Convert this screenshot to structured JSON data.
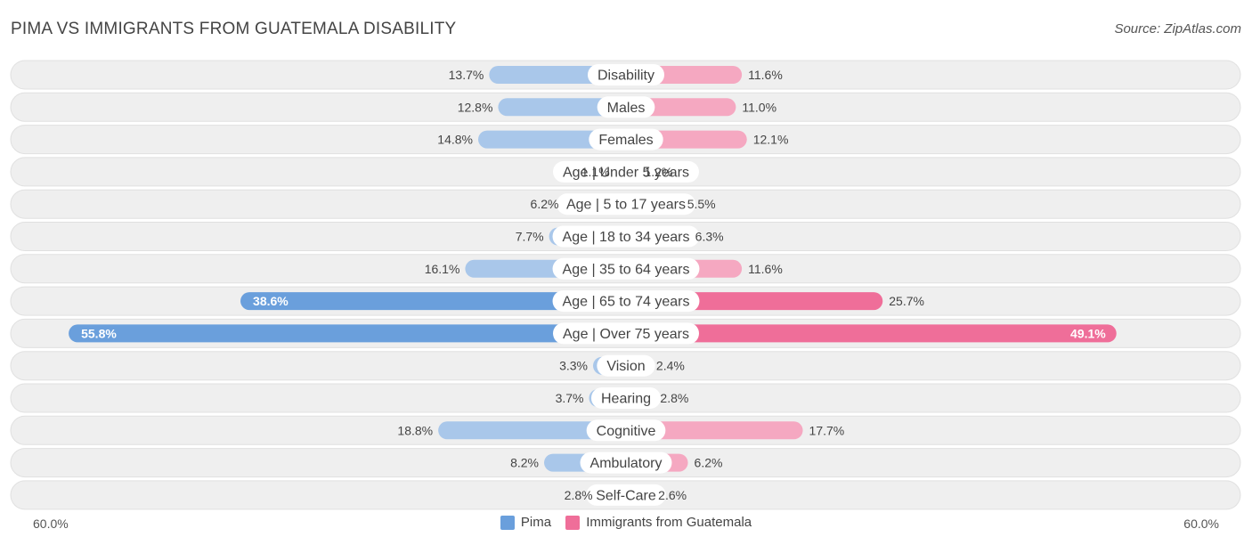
{
  "header": {
    "title": "PIMA VS IMMIGRANTS FROM GUATEMALA DISABILITY",
    "source": "Source: ZipAtlas.com"
  },
  "axis": {
    "left_label": "60.0%",
    "right_label": "60.0%"
  },
  "legend": {
    "left": "Pima",
    "right": "Immigrants from Guatemala"
  },
  "colors": {
    "left_strong": "#6a9fdc",
    "left_light": "#a9c7ea",
    "right_strong": "#ef6e99",
    "right_light": "#f5a8c1",
    "row_bg": "#efefef",
    "row_border": "#e0e0e0"
  },
  "chart_data": {
    "type": "bar",
    "orientation": "horizontal-diverging",
    "title": "PIMA VS IMMIGRANTS FROM GUATEMALA DISABILITY",
    "xlim": [
      -60,
      60
    ],
    "categories": [
      "Disability",
      "Males",
      "Females",
      "Age | Under 5 years",
      "Age | 5 to 17 years",
      "Age | 18 to 34 years",
      "Age | 35 to 64 years",
      "Age | 65 to 74 years",
      "Age | Over 75 years",
      "Vision",
      "Hearing",
      "Cognitive",
      "Ambulatory",
      "Self-Care"
    ],
    "series": [
      {
        "name": "Pima",
        "values": [
          13.7,
          12.8,
          14.8,
          1.1,
          6.2,
          7.7,
          16.1,
          38.6,
          55.8,
          3.3,
          3.7,
          18.8,
          8.2,
          2.8
        ],
        "labels": [
          "13.7%",
          "12.8%",
          "14.8%",
          "1.1%",
          "6.2%",
          "7.7%",
          "16.1%",
          "38.6%",
          "55.8%",
          "3.3%",
          "3.7%",
          "18.8%",
          "8.2%",
          "2.8%"
        ]
      },
      {
        "name": "Immigrants from Guatemala",
        "values": [
          11.6,
          11.0,
          12.1,
          1.2,
          5.5,
          6.3,
          11.6,
          25.7,
          49.1,
          2.4,
          2.8,
          17.7,
          6.2,
          2.6
        ],
        "labels": [
          "11.6%",
          "11.0%",
          "12.1%",
          "1.2%",
          "5.5%",
          "6.3%",
          "11.6%",
          "25.7%",
          "49.1%",
          "2.4%",
          "2.8%",
          "17.7%",
          "6.2%",
          "2.6%"
        ]
      }
    ]
  }
}
